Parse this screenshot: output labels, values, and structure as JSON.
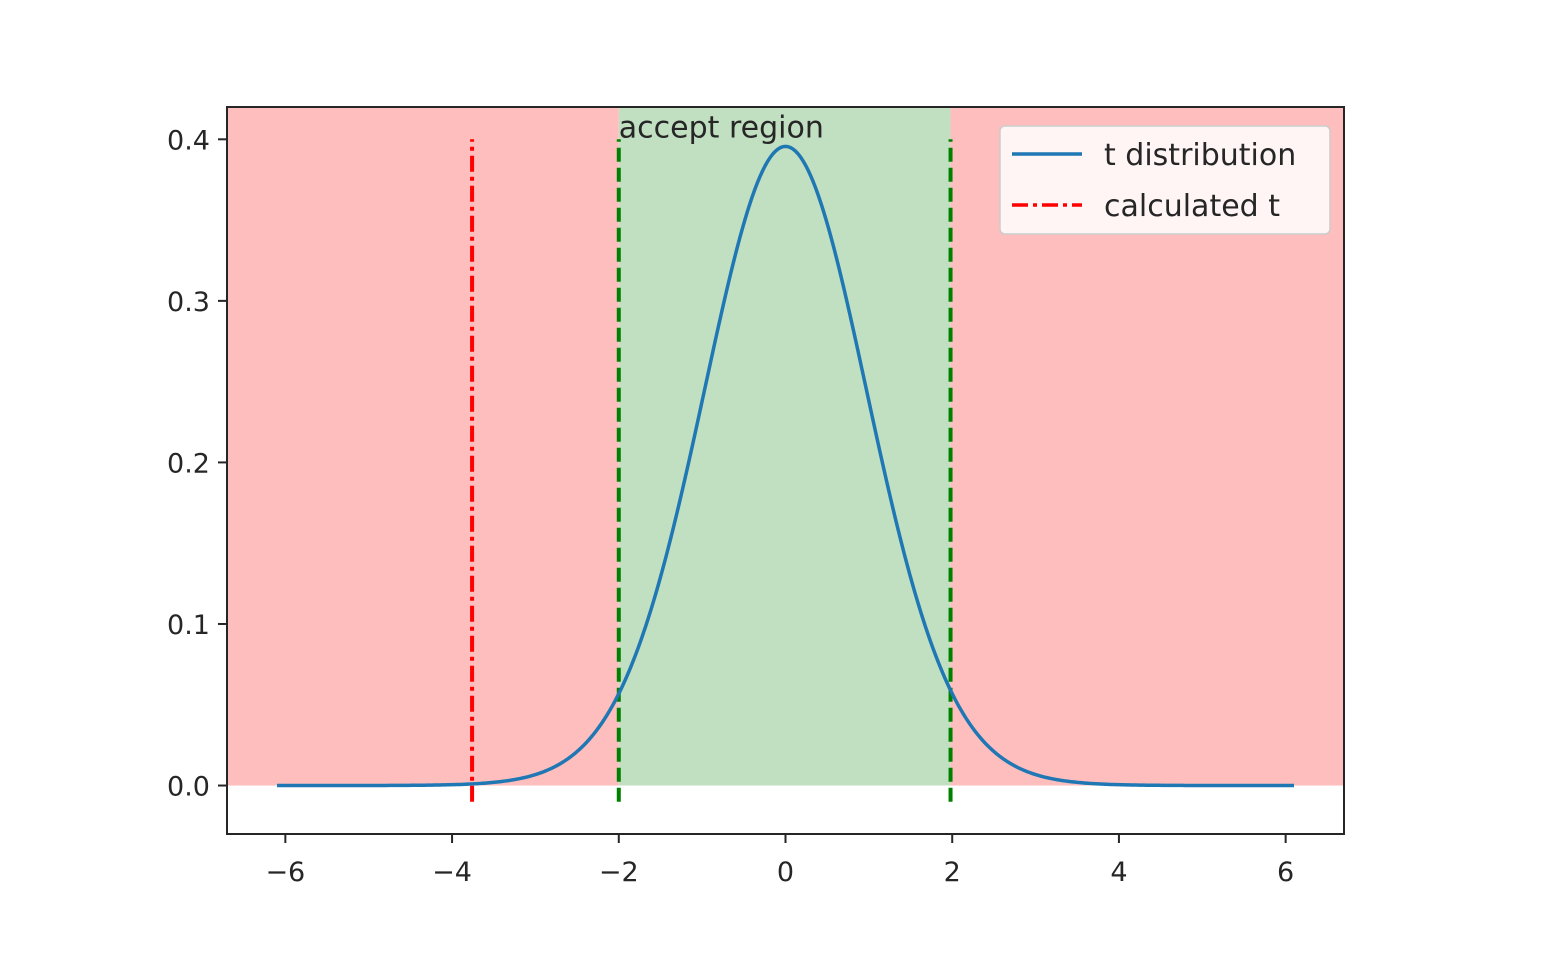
{
  "chart_data": {
    "type": "line",
    "title": "",
    "xlabel": "",
    "ylabel": "",
    "xlim": [
      -6.7,
      6.7
    ],
    "ylim": [
      -0.03,
      0.42
    ],
    "x_ticks": [
      -6,
      -4,
      -2,
      0,
      2,
      4,
      6
    ],
    "x_tick_labels": [
      "−6",
      "−4",
      "−2",
      "0",
      "2",
      "4",
      "6"
    ],
    "y_ticks": [
      0.0,
      0.1,
      0.2,
      0.3,
      0.4
    ],
    "y_tick_labels": [
      "0.0",
      "0.1",
      "0.2",
      "0.3",
      "0.4"
    ],
    "grid": false,
    "legend_position": "top-right",
    "series": [
      {
        "name": "t distribution",
        "kind": "curve",
        "color": "#1f77b4",
        "degrees_of_freedom": 30,
        "x_range": [
          -6.1,
          6.1
        ],
        "peak": 0.396
      },
      {
        "name": "calculated t",
        "kind": "vertical-line",
        "color": "#ff0000",
        "x": -3.76,
        "y_range": [
          -0.01,
          0.4
        ]
      }
    ],
    "critical_values": [
      -2.0,
      1.98
    ],
    "critical_line_color": "#008000",
    "regions": [
      {
        "label": "accept region",
        "x_range": [
          -2.0,
          1.98
        ],
        "color": "#c1dfc1"
      },
      {
        "label": "",
        "x_range": [
          -6.7,
          -2.0
        ],
        "color": "#ffbebe"
      },
      {
        "label": "",
        "x_range": [
          1.98,
          6.7
        ],
        "color": "#ffbebe"
      }
    ],
    "annotations": [
      {
        "text": "accept region",
        "x": -2.0,
        "y": 0.4
      }
    ]
  }
}
